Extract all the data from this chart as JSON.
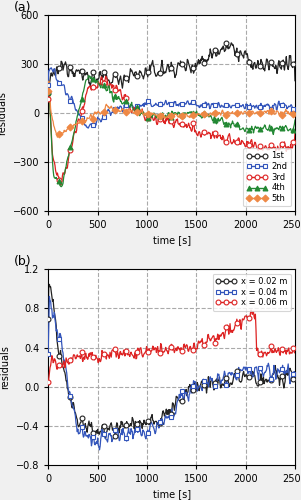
{
  "title_a": "(a)",
  "title_b": "(b)",
  "ylabel_a": "residuals",
  "ylabel_b": "residuals",
  "xlabel": "time [s]",
  "xlim": [
    0,
    2500
  ],
  "ylim_a": [
    -600,
    600
  ],
  "ylim_b": [
    -0.8,
    1.2
  ],
  "yticks_a": [
    -600,
    -300,
    0,
    300,
    600
  ],
  "yticks_b": [
    -0.8,
    -0.4,
    0.0,
    0.4,
    0.8,
    1.2
  ],
  "xticks": [
    0,
    500,
    1000,
    1500,
    2000,
    2500
  ],
  "vlines": [
    500,
    1000,
    1500,
    2000
  ],
  "hlines_a": [
    -300,
    0,
    300
  ],
  "hlines_b": [
    -0.4,
    0.0,
    0.4,
    0.8
  ],
  "colors_a": [
    "#222222",
    "#3355bb",
    "#dd2222",
    "#228833",
    "#ee8844"
  ],
  "facecolors_a": [
    "white",
    "white",
    "white",
    "#228833",
    "#ee8844"
  ],
  "markers_a": [
    "o",
    "s",
    "o",
    "^",
    "D"
  ],
  "labels_a": [
    "1st",
    "2nd",
    "3rd",
    "4th",
    "5th"
  ],
  "colors_b": [
    "#222222",
    "#3355bb",
    "#dd2222"
  ],
  "facecolors_b": [
    "white",
    "white",
    "white"
  ],
  "markers_b": [
    "o",
    "s",
    "o"
  ],
  "labels_b": [
    "x = 0.02 m",
    "x = 0.04 m",
    "x = 0.06 m"
  ],
  "figsize": [
    3.01,
    5.0
  ],
  "dpi": 100
}
